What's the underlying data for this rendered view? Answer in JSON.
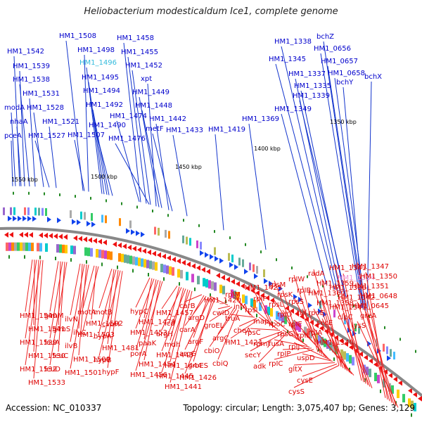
{
  "title": "Heliobacterium modesticaldum Ice1, complete genome",
  "footer": {
    "accession": "Accession: NC_010337",
    "summary": "Topology: circular; Length: 3,075,407 bp; Genes: 3,129"
  },
  "colors": {
    "top_label": "#0000cc",
    "bottom_label": "#dd0000",
    "highlight_blue": "#33bbdd",
    "highlight_pink": "#ee88cc",
    "backbone": "#888888",
    "tick": "#228822"
  },
  "positions": [
    "1550 kbp",
    "1500 kbp",
    "1450 kbp",
    "1400 kbp",
    "1350 kbp"
  ],
  "top_labels": [
    "HM1_1542",
    "HM1_1539",
    "HM1_1538",
    "HM1_1531",
    "modA",
    "HM1_1528",
    "nhaA",
    "HM1_1521",
    "pceA",
    "HM1_1527",
    "HM1_1508",
    "HM1_1498",
    "HM1_1496",
    "HM1_1495",
    "HM1_1494",
    "HM1_1492",
    "HM1_1490",
    "HM1_1507",
    "HM1_1458",
    "HM1_1455",
    "HM1_1452",
    "xpt",
    "HM1_1449",
    "HM1_1448",
    "HM1_1474",
    "HM1_1476",
    "HM1_1442",
    "metF",
    "HM1_1433",
    "HM1_1419",
    "HM1_1369",
    "HM1_1338",
    "HM1_1345",
    "HM1_1337",
    "HM1_1335",
    "HM1_1339",
    "HM1_1349",
    "bchZ",
    "HM1_0656",
    "HM1_0657",
    "HM1_0658",
    "bchY",
    "bchX"
  ],
  "bottom_labels": [
    "HM1_1540",
    "HM1_1541",
    "HM1_1529",
    "HM1_1530",
    "HM1_1532",
    "HM1_1533",
    "glmM",
    "glmS",
    "leuA",
    "leuC",
    "leuD",
    "ilvN",
    "ilvC",
    "ilvB",
    "HM1_1500",
    "HM1_1501",
    "motA",
    "HM1_1502",
    "HM1_1503",
    "motB",
    "cvbH",
    "hypA",
    "HM1_1481",
    "hypB",
    "hypF",
    "hypC",
    "HM1_1479",
    "HM1_1453",
    "paaK",
    "porA",
    "HM1_1454",
    "HM1_1456",
    "HM1_1457",
    "icd",
    "argH",
    "mdh",
    "HM1_1443",
    "HM1_1444",
    "HM1_1445",
    "HM1_1441",
    "argB",
    "carB",
    "argD",
    "carA",
    "argF",
    "argG",
    "groES",
    "HM1_1426",
    "HM1_1420",
    "cwID",
    "groEL",
    "argC",
    "cbiO",
    "cbiQ",
    "rplM",
    "infA",
    "truA",
    "cheA",
    "HM1_1424",
    "HM1_1425",
    "rpIF",
    "rpsl",
    "map",
    "rpsC",
    "rpmJ",
    "secY",
    "adk",
    "rpsM",
    "rpsK",
    "rpsL",
    "rpIO",
    "rpoC",
    "rpsG",
    "fusA",
    "rpIP",
    "rpIC",
    "rpIW",
    "rpIB",
    "rpsS",
    "tuf",
    "rpIE",
    "rpIL",
    "rpIJ",
    "uspD",
    "gltX",
    "cysE",
    "cysS",
    "radA",
    "HM1_1359",
    "HM1_1360",
    "HM1_1358",
    "rpoE",
    "secE",
    "rpIA",
    "HM1_1340",
    "HM1_1341",
    "HM1_1334",
    "HM1_1336",
    "HM1_1342",
    "HM1_1343",
    "clpC",
    "HM1_1347",
    "HM1_1350",
    "HM1_1351",
    "HM1_0648",
    "HM1_0645",
    "greA",
    "lysS"
  ]
}
